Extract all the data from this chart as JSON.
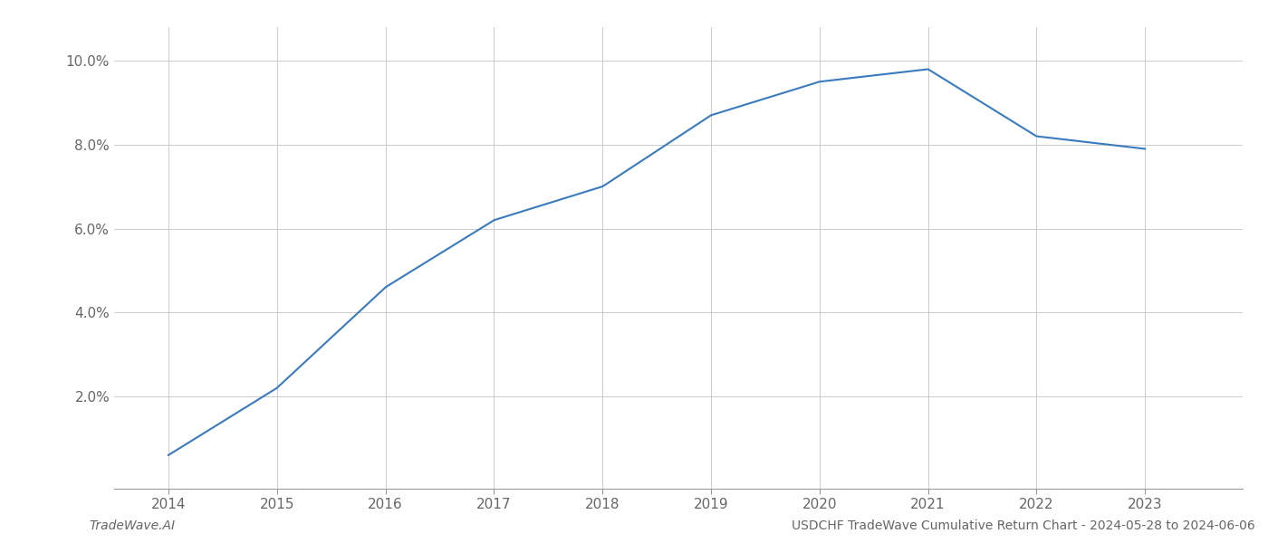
{
  "x": [
    2014,
    2015,
    2016,
    2017,
    2018,
    2019,
    2020,
    2021,
    2022,
    2023
  ],
  "y": [
    0.006,
    0.022,
    0.046,
    0.062,
    0.07,
    0.087,
    0.095,
    0.098,
    0.082,
    0.079
  ],
  "line_color": "#3a7abf",
  "line_width": 1.5,
  "background_color": "#ffffff",
  "grid_color": "#cccccc",
  "footer_left": "TradeWave.AI",
  "footer_right": "USDCHF TradeWave Cumulative Return Chart - 2024-05-28 to 2024-06-06",
  "yticks": [
    0.02,
    0.04,
    0.06,
    0.08,
    0.1
  ],
  "ytick_labels": [
    "2.0%",
    "4.0%",
    "6.0%",
    "8.0%",
    "10.0%"
  ],
  "xlim": [
    2013.5,
    2023.9
  ],
  "ylim": [
    -0.002,
    0.108
  ],
  "xticks": [
    2014,
    2015,
    2016,
    2017,
    2018,
    2019,
    2020,
    2021,
    2022,
    2023
  ]
}
